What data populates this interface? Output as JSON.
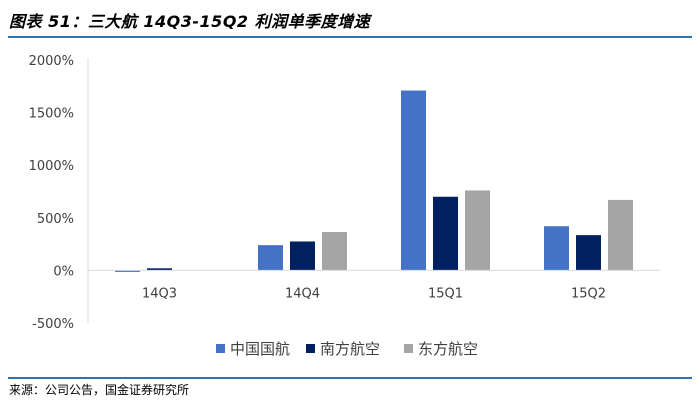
{
  "header": {
    "title": "图表 51：三大航 14Q3-15Q2 利润单季度增速"
  },
  "footer": {
    "source": "来源：公司公告，国金证券研究所"
  },
  "chart_data": {
    "type": "bar",
    "title": "",
    "xlabel": "",
    "ylabel": "",
    "categories": [
      "14Q3",
      "14Q4",
      "15Q1",
      "15Q2"
    ],
    "y_tick_labels": [
      "2000%",
      "1500%",
      "1000%",
      "500%",
      "0%",
      "-500%"
    ],
    "ylim": [
      -500,
      2000
    ],
    "y_unit": "%",
    "grid": false,
    "legend_position": "bottom",
    "series": [
      {
        "name": "中国国航",
        "color": "#4472c4",
        "values": [
          -10,
          240,
          1710,
          420
        ]
      },
      {
        "name": "南方航空",
        "color": "#002060",
        "values": [
          20,
          275,
          700,
          335
        ]
      },
      {
        "name": "东方航空",
        "color": "#a5a5a5",
        "values": [
          0,
          365,
          760,
          670
        ]
      }
    ]
  }
}
